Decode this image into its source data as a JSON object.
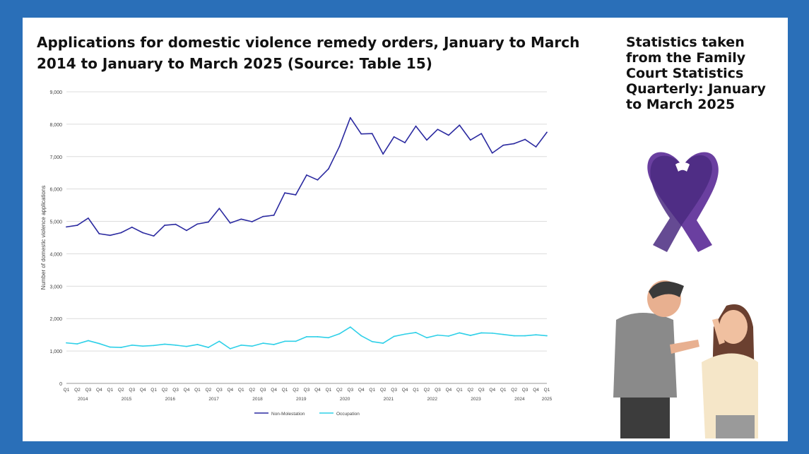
{
  "title": "Applications for domestic violence remedy orders, January to March 2014 to January to March 2025 (Source: Table 15)",
  "side_text": "Statistics taken from the Family Court Statistics Quarterly: January to March 2025",
  "colors": {
    "frame": "#2a6fb8",
    "non_molestation": "#2b2aa0",
    "occupation": "#2fd0e8",
    "ribbon": "#6a3fa0",
    "ribbon_dark": "#4a2a80"
  },
  "chart_data": {
    "type": "line",
    "ylabel": "Number of domestic violence applications",
    "xlabel": "",
    "ylim": [
      0,
      9000
    ],
    "yticks": [
      "0",
      "1,000",
      "2,000",
      "3,000",
      "4,000",
      "5,000",
      "6,000",
      "7,000",
      "8,000",
      "9,000"
    ],
    "grid": true,
    "legend_position": "bottom",
    "years": [
      "2014",
      "2015",
      "2016",
      "2017",
      "2018",
      "2019",
      "2020",
      "2021",
      "2022",
      "2023",
      "2024",
      "2025"
    ],
    "quarters": [
      "Q1",
      "Q2",
      "Q3",
      "Q4",
      "Q1",
      "Q2",
      "Q3",
      "Q4",
      "Q1",
      "Q2",
      "Q3",
      "Q4",
      "Q1",
      "Q2",
      "Q3",
      "Q4",
      "Q1",
      "Q2",
      "Q3",
      "Q4",
      "Q1",
      "Q2",
      "Q3",
      "Q4",
      "Q1",
      "Q2",
      "Q3",
      "Q4",
      "Q1",
      "Q2",
      "Q3",
      "Q4",
      "Q1",
      "Q2",
      "Q3",
      "Q4",
      "Q1",
      "Q2",
      "Q3",
      "Q4",
      "Q1",
      "Q2",
      "Q3",
      "Q4",
      "Q1"
    ],
    "series": [
      {
        "name": "Non-Molestation",
        "values": [
          4830,
          4880,
          5100,
          4620,
          4570,
          4650,
          4820,
          4650,
          4550,
          4880,
          4910,
          4720,
          4920,
          4980,
          5400,
          4950,
          5070,
          4990,
          5150,
          5190,
          5880,
          5820,
          6430,
          6280,
          6620,
          7310,
          8200,
          7700,
          7710,
          7080,
          7610,
          7430,
          7940,
          7510,
          7840,
          7660,
          7970,
          7510,
          7710,
          7110,
          7350,
          7400,
          7530,
          7300,
          7750
        ]
      },
      {
        "name": "Occupation",
        "values": [
          1250,
          1220,
          1320,
          1230,
          1120,
          1110,
          1180,
          1150,
          1170,
          1210,
          1180,
          1140,
          1200,
          1110,
          1300,
          1070,
          1180,
          1150,
          1240,
          1200,
          1300,
          1300,
          1440,
          1440,
          1410,
          1530,
          1740,
          1470,
          1290,
          1240,
          1450,
          1520,
          1570,
          1410,
          1490,
          1460,
          1560,
          1480,
          1560,
          1550,
          1510,
          1470,
          1470,
          1500,
          1470
        ]
      }
    ]
  }
}
